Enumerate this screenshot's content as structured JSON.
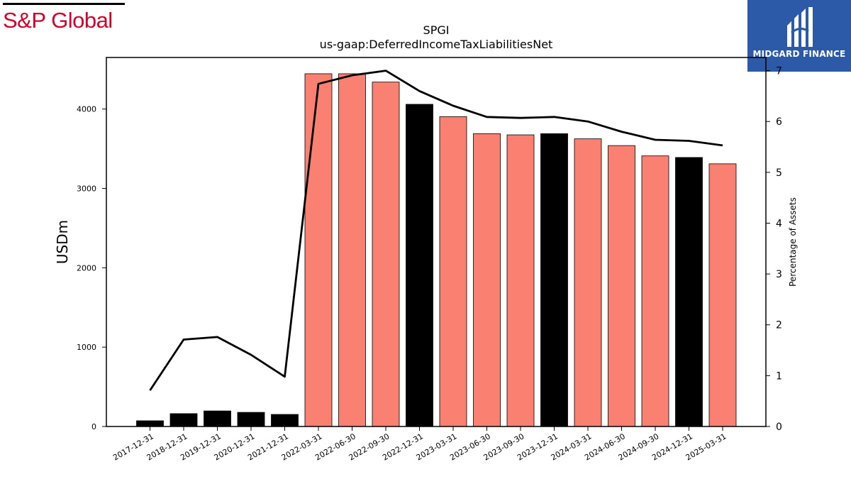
{
  "branding": {
    "left_logo_text": "S&P Global",
    "right_logo_text": "MIDGARD FINANCE",
    "left_logo_color": "#d6002a",
    "right_logo_bg": "#2c5aa8"
  },
  "chart_data": {
    "type": "bar",
    "title": "SPGI",
    "subtitle": "us-gaap:DeferredIncomeTaxLiabilitiesNet",
    "ylabel": "USDm",
    "y2label": "Percentage of Assets",
    "ylim": [
      0,
      4650
    ],
    "y2lim": [
      0,
      7.26
    ],
    "yticks": [
      0,
      1000,
      2000,
      3000,
      4000
    ],
    "y2ticks": [
      0,
      1,
      2,
      3,
      4,
      5,
      6,
      7
    ],
    "categories": [
      "2017-12-31",
      "2018-12-31",
      "2019-12-31",
      "2020-12-31",
      "2021-12-31",
      "2022-03-31",
      "2022-06-30",
      "2022-09-30",
      "2022-12-31",
      "2023-03-31",
      "2023-06-30",
      "2023-09-30",
      "2023-12-31",
      "2024-03-31",
      "2024-06-30",
      "2024-09-30",
      "2024-12-31",
      "2025-03-31"
    ],
    "series": [
      {
        "kind": "bar",
        "axis": "left",
        "values": [
          72,
          162,
          196,
          178,
          152,
          4445,
          4445,
          4340,
          4060,
          3905,
          3690,
          3675,
          3690,
          3625,
          3540,
          3410,
          3390,
          3310
        ],
        "colors": [
          "#000000",
          "#000000",
          "#000000",
          "#000000",
          "#000000",
          "#fa8072",
          "#fa8072",
          "#fa8072",
          "#000000",
          "#fa8072",
          "#fa8072",
          "#fa8072",
          "#000000",
          "#fa8072",
          "#fa8072",
          "#fa8072",
          "#000000",
          "#fa8072"
        ]
      },
      {
        "kind": "line",
        "axis": "right",
        "values": [
          0.71,
          1.71,
          1.76,
          1.41,
          0.98,
          6.74,
          6.91,
          7.0,
          6.6,
          6.31,
          6.09,
          6.07,
          6.09,
          6.0,
          5.8,
          5.64,
          5.62,
          5.53
        ],
        "color": "#000000"
      }
    ]
  }
}
